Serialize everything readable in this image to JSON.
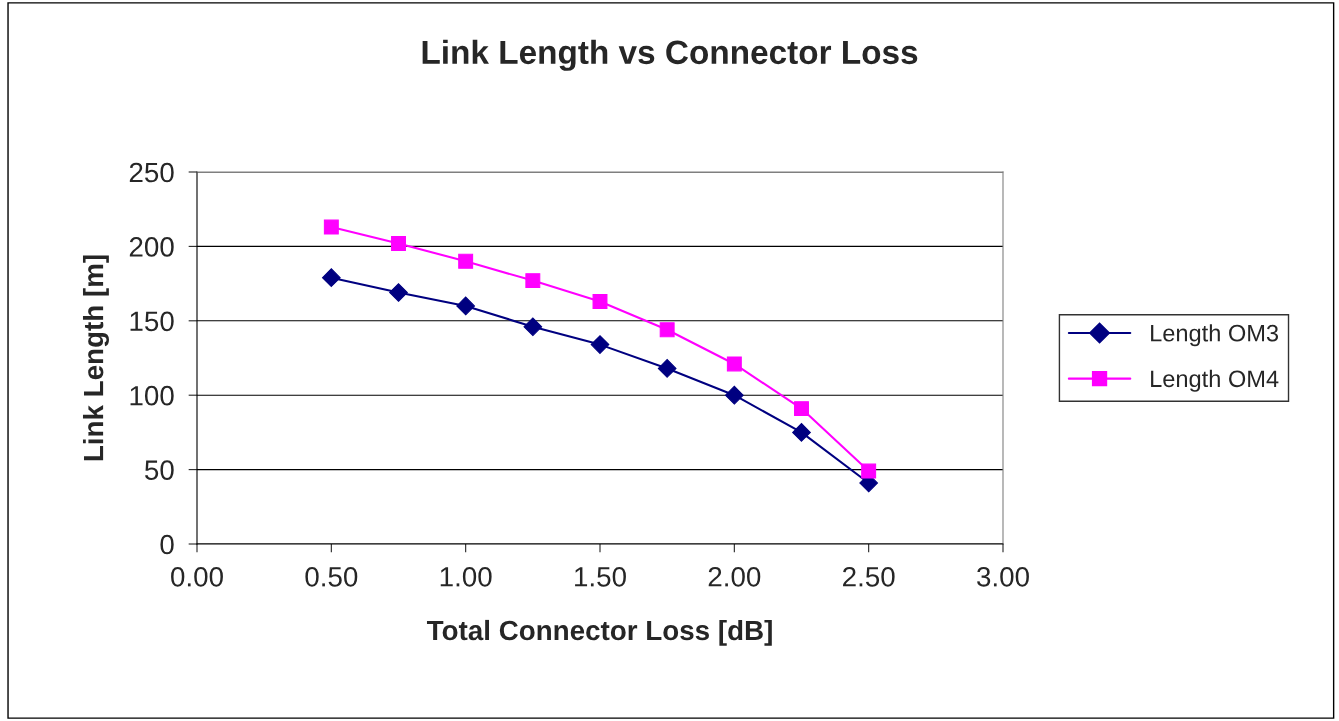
{
  "chart_data": {
    "type": "line",
    "title": "Link Length vs Connector Loss",
    "xlabel": "Total Connector Loss [dB]",
    "ylabel": "Link Length [m]",
    "x": [
      0.5,
      0.75,
      1.0,
      1.25,
      1.5,
      1.75,
      2.0,
      2.25,
      2.5
    ],
    "series": [
      {
        "name": "Length OM3",
        "color": "#000080",
        "marker": "diamond",
        "values": [
          179,
          169,
          160,
          146,
          134,
          118,
          100,
          75,
          41
        ]
      },
      {
        "name": "Length OM4",
        "color": "#ff00ff",
        "marker": "square",
        "values": [
          213,
          202,
          190,
          177,
          163,
          144,
          121,
          91,
          49
        ]
      }
    ],
    "xlim": [
      0,
      3
    ],
    "xticks": [
      {
        "value": 0,
        "label": "0.00"
      },
      {
        "value": 0.5,
        "label": "0.50"
      },
      {
        "value": 1,
        "label": "1.00"
      },
      {
        "value": 1.5,
        "label": "1.50"
      },
      {
        "value": 2,
        "label": "2.00"
      },
      {
        "value": 2.5,
        "label": "2.50"
      },
      {
        "value": 3,
        "label": "3.00"
      }
    ],
    "ylim": [
      0,
      250
    ],
    "yticks": [
      0,
      50,
      100,
      150,
      200,
      250
    ],
    "grid": "y",
    "legend": "right",
    "line_style": "solid"
  }
}
